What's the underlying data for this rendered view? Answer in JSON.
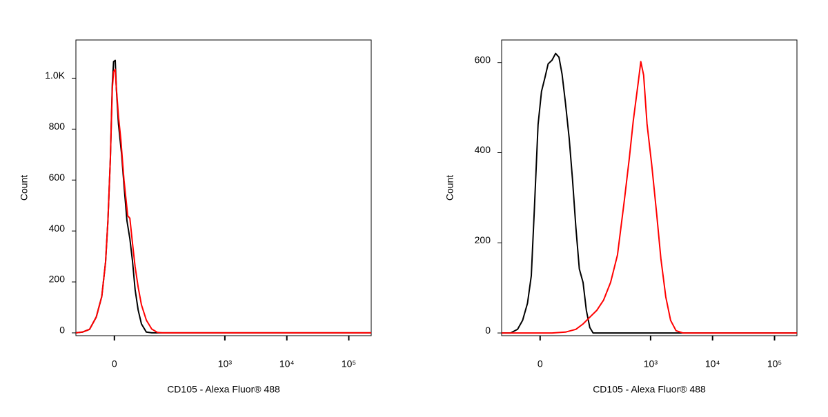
{
  "chart_data": [
    {
      "type": "line",
      "xlabel": "CD105 - Alexa Fluor® 488",
      "ylabel": "Count",
      "xscale": "asinh",
      "xlim": [
        -65,
        230000
      ],
      "xticks": [
        0,
        {
          "value": 1000,
          "label": "10³"
        },
        {
          "value": 10000,
          "label": "10⁴"
        },
        {
          "value": 100000,
          "label": "10⁵"
        }
      ],
      "ylim": [
        -11,
        1150
      ],
      "yticks": [
        0,
        200,
        400,
        600,
        800,
        {
          "value": 1000,
          "label": "1.0K"
        }
      ],
      "series": [
        {
          "color": "#000000",
          "x": [
            -65,
            -49,
            -35,
            -24,
            -16,
            -11,
            -8,
            -5,
            -2.5,
            -1,
            1,
            2.5,
            5,
            9,
            12,
            16,
            20,
            24,
            28,
            33,
            39,
            49,
            62,
            230000
          ],
          "values": [
            0,
            3,
            14,
            62,
            143,
            278,
            440,
            681,
            978,
            1065,
            1070,
            955,
            820,
            700,
            580,
            440,
            370,
            280,
            170,
            90,
            35,
            3,
            0,
            0
          ]
        },
        {
          "color": "#ff0000",
          "x": [
            -65,
            -49,
            -35,
            -24,
            -16,
            -11,
            -8,
            -5,
            -2.5,
            -1,
            1,
            2.5,
            5,
            8,
            12,
            17,
            20,
            24,
            28,
            33,
            39,
            49,
            62,
            78,
            94,
            230000
          ],
          "values": [
            0,
            3,
            14,
            62,
            143,
            278,
            440,
            681,
            960,
            1025,
            1035,
            960,
            850,
            760,
            600,
            460,
            450,
            350,
            260,
            180,
            110,
            50,
            15,
            2,
            0,
            0
          ]
        }
      ]
    },
    {
      "type": "line",
      "xlabel": "CD105 - Alexa Fluor® 488",
      "ylabel": "Count",
      "xscale": "asinh",
      "xlim": [
        -65,
        230000
      ],
      "xticks": [
        0,
        {
          "value": 1000,
          "label": "10³"
        },
        {
          "value": 10000,
          "label": "10⁴"
        },
        {
          "value": 100000,
          "label": "10⁵"
        }
      ],
      "ylim": [
        -6,
        650
      ],
      "yticks": [
        0,
        200,
        400,
        600
      ],
      "series": [
        {
          "color": "#000000",
          "x": [
            -65,
            -44,
            -31,
            -23,
            -16,
            -11,
            -7,
            -2.5,
            1.7,
            5.9,
            10,
            15,
            20,
            25,
            30,
            36,
            43,
            50,
            58,
            67,
            78,
            89,
            102,
            116,
            152,
            230000
          ],
          "values": [
            0,
            0,
            8,
            28,
            66,
            127,
            280,
            462,
            536,
            566,
            597,
            605,
            620,
            612,
            574,
            509,
            432,
            341,
            234,
            142,
            112,
            50,
            12,
            0,
            0,
            0
          ]
        },
        {
          "color": "#ff0000",
          "x": [
            -65,
            15,
            36,
            58,
            78,
            102,
            133,
            173,
            225,
            291,
            377,
            452,
            525,
            630,
            694,
            772,
            875,
            1046,
            1254,
            1466,
            1758,
            2102,
            2574,
            3330,
            230000
          ],
          "values": [
            0,
            0,
            2,
            8,
            20,
            35,
            50,
            73,
            112,
            173,
            295,
            387,
            471,
            555,
            602,
            572,
            464,
            372,
            264,
            165,
            80,
            28,
            5,
            0,
            0
          ]
        }
      ]
    }
  ]
}
